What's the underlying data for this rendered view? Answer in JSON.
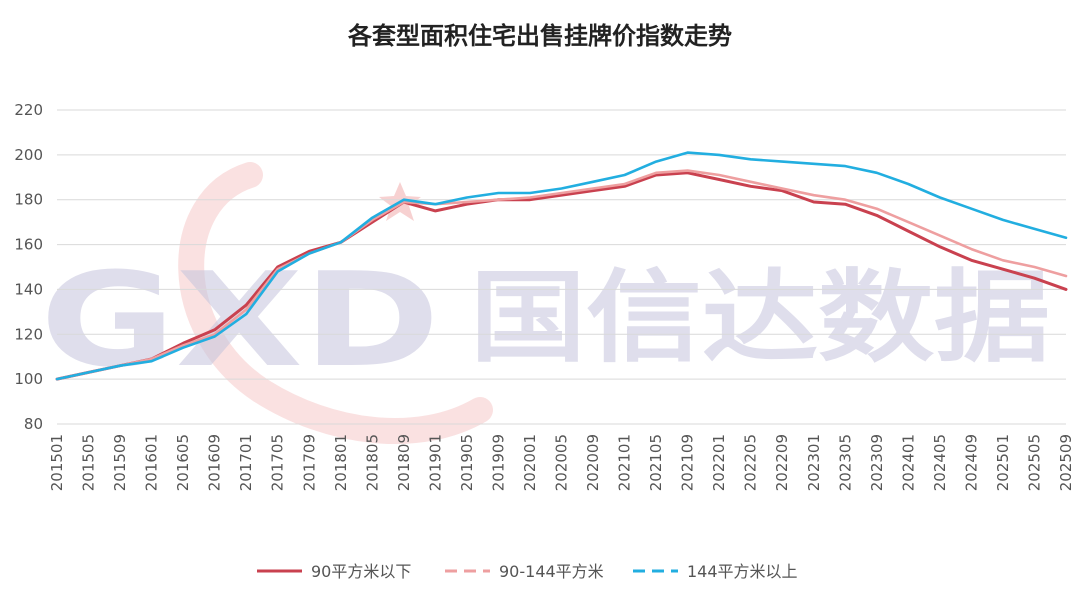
{
  "chart_data": {
    "type": "line",
    "title": "各套型面积住宅出售挂牌价指数走势",
    "xlabel": "",
    "ylabel": "",
    "ylim": [
      80,
      220
    ],
    "yticks": [
      80,
      100,
      120,
      140,
      160,
      180,
      200,
      220
    ],
    "xlim": [
      "201501",
      "202509"
    ],
    "xtick_labels": [
      "201501",
      "201505",
      "201509",
      "201601",
      "201605",
      "201609",
      "201701",
      "201705",
      "201709",
      "201801",
      "201805",
      "201809",
      "201901",
      "201905",
      "201909",
      "202001",
      "202005",
      "202009",
      "202101",
      "202105",
      "202109",
      "202201",
      "202205",
      "202209",
      "202301",
      "202305",
      "202309",
      "202401",
      "202405",
      "202409",
      "202501",
      "202505",
      "202509"
    ],
    "grid": true,
    "legend_position": "bottom",
    "watermark": {
      "logo_text": "GXD",
      "text": "国信达数据"
    },
    "x": [
      "201501",
      "201505",
      "201509",
      "201601",
      "201605",
      "201609",
      "201701",
      "201705",
      "201709",
      "201801",
      "201805",
      "201809",
      "201901",
      "201905",
      "201909",
      "202001",
      "202005",
      "202009",
      "202101",
      "202105",
      "202109",
      "202201",
      "202205",
      "202209",
      "202301",
      "202305",
      "202309",
      "202401",
      "202405",
      "202409",
      "202501",
      "202505",
      "202509"
    ],
    "series": [
      {
        "name": "90平方米以下",
        "color": "#c9414f",
        "dash": "solid",
        "values": [
          100,
          103,
          106,
          109,
          116,
          122,
          133,
          150,
          157,
          161,
          170,
          179,
          175,
          178,
          180,
          180,
          182,
          184,
          186,
          191,
          192,
          189,
          186,
          184,
          179,
          178,
          173,
          166,
          159,
          153,
          149,
          145,
          140
        ]
      },
      {
        "name": "90-144平方米",
        "color": "#ee9fa0",
        "dash": "dashed",
        "values": [
          100,
          103,
          106,
          109,
          115,
          120,
          131,
          149,
          156,
          161,
          171,
          179,
          178,
          179,
          180,
          181,
          183,
          185,
          187,
          192,
          193,
          191,
          188,
          185,
          182,
          180,
          176,
          170,
          164,
          158,
          153,
          150,
          146
        ]
      },
      {
        "name": "144平方米以上",
        "color": "#22aee0",
        "dash": "dashed",
        "values": [
          100,
          103,
          106,
          108,
          114,
          119,
          129,
          148,
          156,
          161,
          172,
          180,
          178,
          181,
          183,
          183,
          185,
          188,
          191,
          197,
          201,
          200,
          198,
          197,
          196,
          195,
          192,
          187,
          181,
          176,
          171,
          167,
          163
        ]
      }
    ]
  }
}
